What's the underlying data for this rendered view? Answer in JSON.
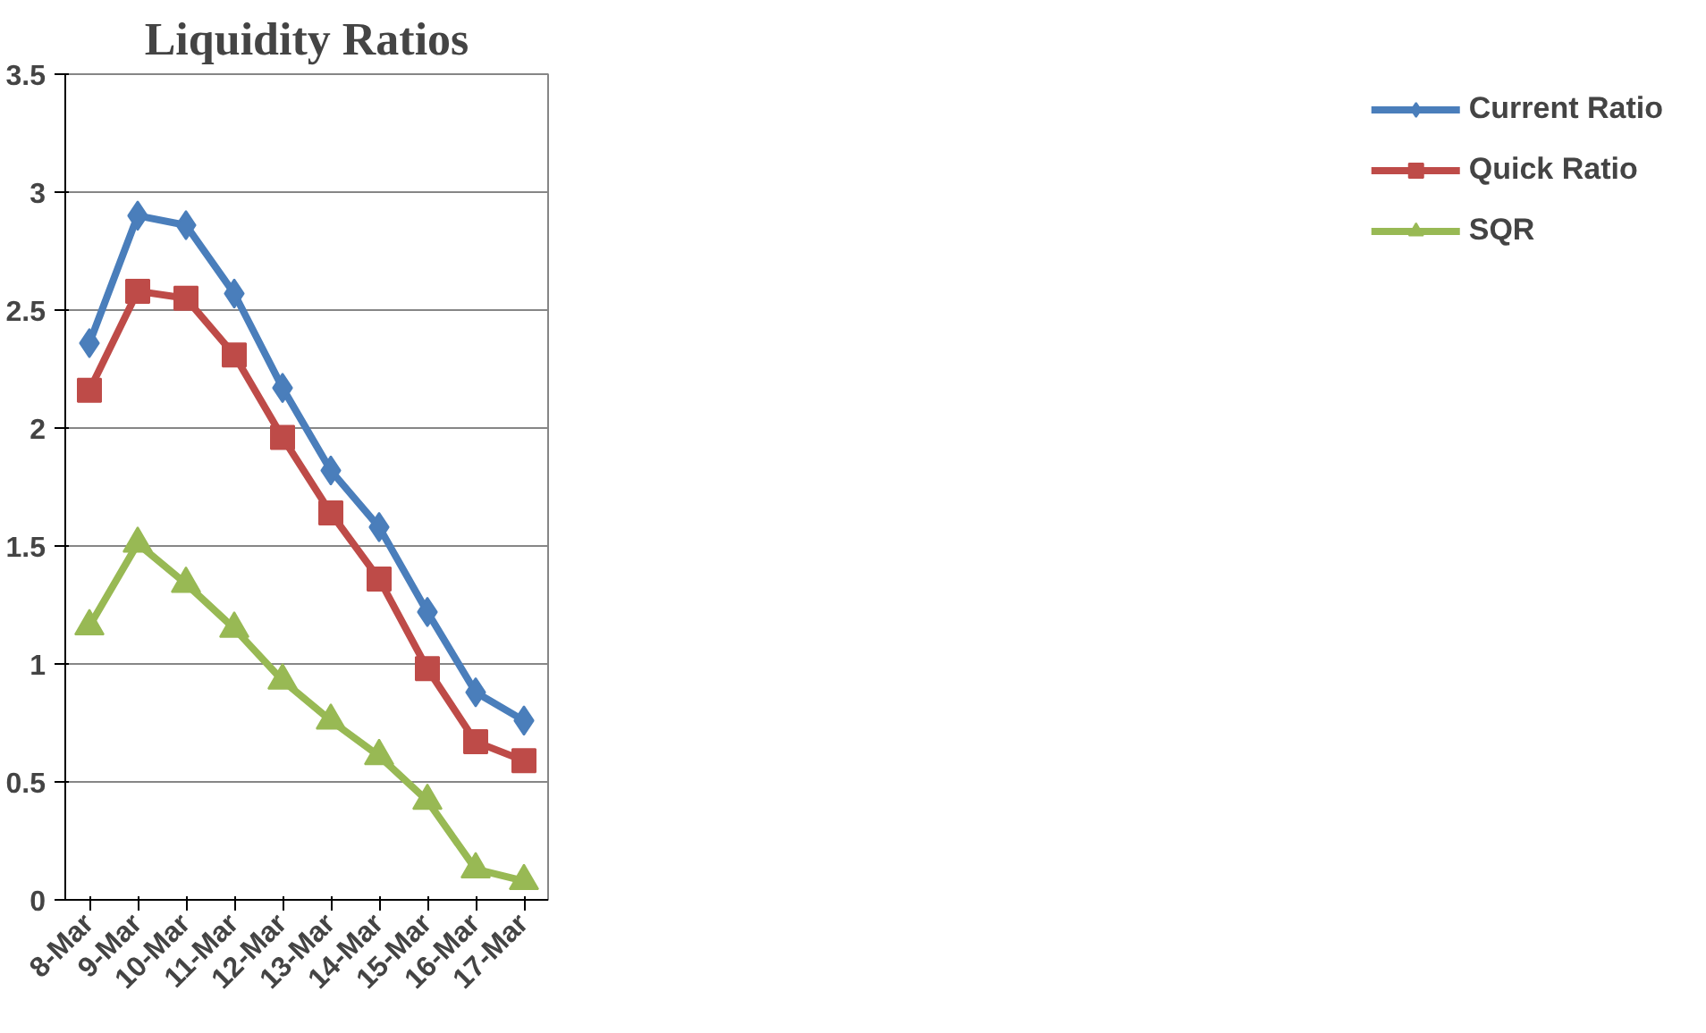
{
  "chart_data": {
    "type": "line",
    "title": "Liquidity Ratios",
    "categories": [
      "8-Mar",
      "9-Mar",
      "10-Mar",
      "11-Mar",
      "12-Mar",
      "13-Mar",
      "14-Mar",
      "15-Mar",
      "16-Mar",
      "17-Mar"
    ],
    "series": [
      {
        "name": "Current Ratio",
        "color": "#4a7ebb",
        "marker": "diamond",
        "values": [
          2.36,
          2.9,
          2.86,
          2.57,
          2.17,
          1.82,
          1.58,
          1.22,
          0.88,
          0.76
        ]
      },
      {
        "name": "Quick Ratio",
        "color": "#be4b48",
        "marker": "square",
        "values": [
          2.16,
          2.58,
          2.55,
          2.31,
          1.96,
          1.64,
          1.36,
          0.98,
          0.67,
          0.59
        ]
      },
      {
        "name": "SQR",
        "color": "#98b954",
        "marker": "triangle",
        "values": [
          1.16,
          1.51,
          1.34,
          1.15,
          0.93,
          0.76,
          0.61,
          0.42,
          0.13,
          0.08
        ]
      }
    ],
    "ylim": [
      0,
      3.5
    ],
    "yticks": [
      0,
      0.5,
      1,
      1.5,
      2,
      2.5,
      3,
      3.5
    ],
    "grid": "y",
    "legend": "right"
  }
}
